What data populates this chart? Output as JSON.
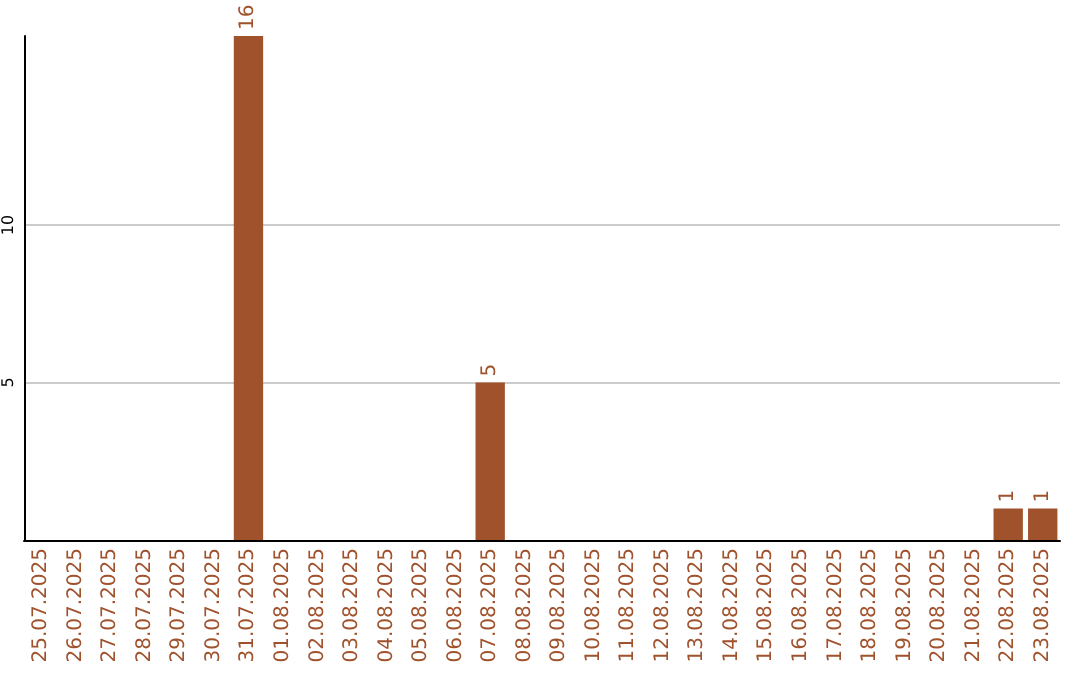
{
  "chart_data": {
    "type": "bar",
    "categories": [
      "25.07.2025",
      "26.07.2025",
      "27.07.2025",
      "28.07.2025",
      "29.07.2025",
      "30.07.2025",
      "31.07.2025",
      "01.08.2025",
      "02.08.2025",
      "03.08.2025",
      "04.08.2025",
      "05.08.2025",
      "06.08.2025",
      "07.08.2025",
      "08.08.2025",
      "09.08.2025",
      "10.08.2025",
      "11.08.2025",
      "12.08.2025",
      "13.08.2025",
      "14.08.2025",
      "15.08.2025",
      "16.08.2025",
      "17.08.2025",
      "18.08.2025",
      "19.08.2025",
      "20.08.2025",
      "21.08.2025",
      "22.08.2025",
      "23.08.2025"
    ],
    "values": [
      0,
      0,
      0,
      0,
      0,
      0,
      16,
      0,
      0,
      0,
      0,
      0,
      0,
      5,
      0,
      0,
      0,
      0,
      0,
      0,
      0,
      0,
      0,
      0,
      0,
      0,
      0,
      0,
      1,
      1
    ],
    "value_labels": [
      null,
      null,
      null,
      null,
      null,
      null,
      "16",
      null,
      null,
      null,
      null,
      null,
      null,
      "5",
      null,
      null,
      null,
      null,
      null,
      null,
      null,
      null,
      null,
      null,
      null,
      null,
      null,
      null,
      "1",
      "1"
    ],
    "color": "#a0522d",
    "ylim": [
      0,
      16
    ],
    "yticks": [
      5,
      10
    ],
    "grid": "y"
  }
}
